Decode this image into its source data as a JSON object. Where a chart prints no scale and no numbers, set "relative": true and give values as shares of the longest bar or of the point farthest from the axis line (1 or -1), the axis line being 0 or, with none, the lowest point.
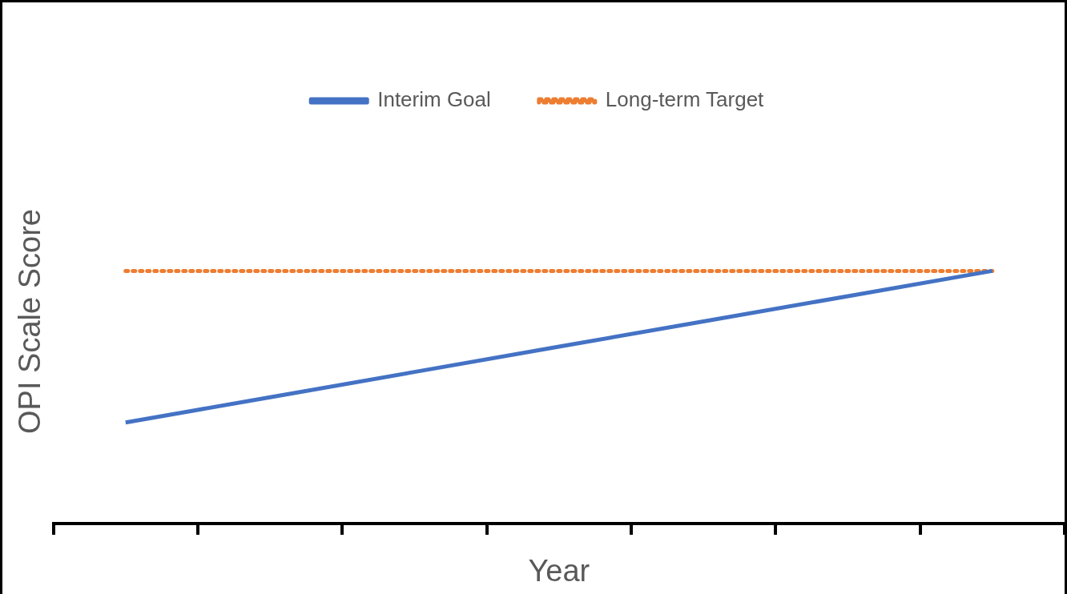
{
  "chart_data": {
    "type": "line",
    "relative": true,
    "xlabel": "Year",
    "ylabel": "OPI Scale Score",
    "categories": [
      null,
      null,
      null,
      null,
      null,
      null,
      null
    ],
    "series": [
      {
        "name": "Interim Goal",
        "color": "#4472c4",
        "values": [
          0.4,
          0.5,
          0.6,
          0.7,
          0.8,
          0.9,
          1
        ]
      },
      {
        "name": "Long-term Target",
        "color": "#ed7d31",
        "line_style": "dotted",
        "values": [
          1,
          1,
          1,
          1,
          1,
          1,
          1
        ]
      }
    ],
    "legend": "top",
    "marker": "none"
  }
}
